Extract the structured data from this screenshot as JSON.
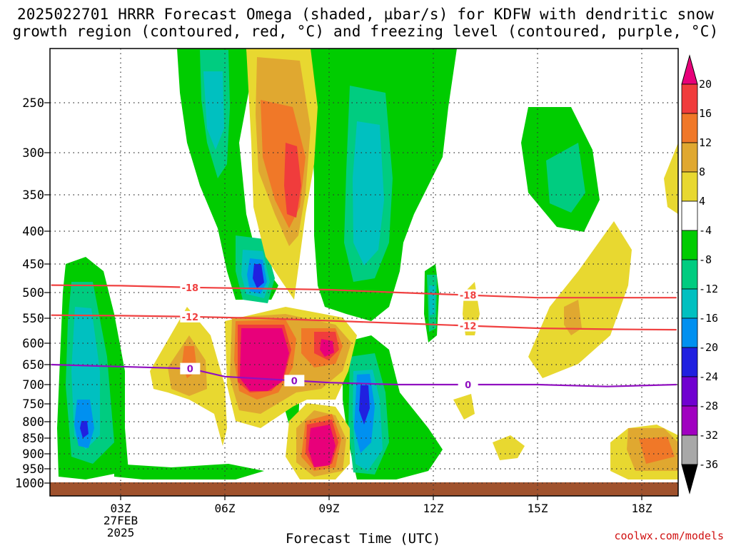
{
  "title_line1": "2025022701 HRRR Forecast Omega (shaded, µbar/s) for KDFW with dendritic snow",
  "title_line2": "growth region (contoured, red, °C) and freezing level (contoured, purple, °C)",
  "credit": "coolwx.com/models",
  "chart_data": {
    "type": "heatmap",
    "xlabel": "Forecast Time (UTC)",
    "x_ticks": [
      "03Z",
      "06Z",
      "09Z",
      "12Z",
      "15Z",
      "18Z"
    ],
    "x_date_label": [
      "27FEB",
      "2025"
    ],
    "y_ticks": [
      250,
      300,
      350,
      400,
      450,
      500,
      550,
      600,
      650,
      700,
      750,
      800,
      850,
      900,
      950,
      1000
    ],
    "y_axis": "pressure (hPa), decreasing upward",
    "grid": true,
    "colorbar": {
      "labels": [
        "20",
        "16",
        "12",
        "8",
        "4",
        "-4",
        "-8",
        "-12",
        "-16",
        "-20",
        "-24",
        "-28",
        "-32",
        "-36"
      ],
      "colors": [
        "#e8007a",
        "#f03c3c",
        "#f07828",
        "#e0a830",
        "#e8d830",
        "#ffffff",
        "#00cc00",
        "#00cc80",
        "#00c0c0",
        "#0090f0",
        "#2020e0",
        "#7000d0",
        "#a000c0",
        "#a8a8a8",
        "#000000"
      ]
    },
    "contours": [
      {
        "name": "dendritic growth -18°C",
        "label": "-18",
        "color": "#f04040",
        "points": [
          [
            1,
            487
          ],
          [
            3,
            488
          ],
          [
            5,
            491
          ],
          [
            7,
            493
          ],
          [
            9,
            495
          ],
          [
            11,
            500
          ],
          [
            13,
            505
          ],
          [
            15,
            510
          ],
          [
            17,
            510
          ],
          [
            19,
            510
          ]
        ]
      },
      {
        "name": "dendritic growth -12°C",
        "label": "-12",
        "color": "#f04040",
        "points": [
          [
            1,
            544
          ],
          [
            3,
            545
          ],
          [
            5,
            547
          ],
          [
            7,
            550
          ],
          [
            9,
            555
          ],
          [
            11,
            560
          ],
          [
            13,
            565
          ],
          [
            15,
            570
          ],
          [
            17,
            572
          ],
          [
            19,
            573
          ]
        ]
      },
      {
        "name": "freezing level 0°C",
        "label": "0",
        "color": "#9010c0",
        "points": [
          [
            1,
            650
          ],
          [
            3,
            655
          ],
          [
            5,
            660
          ],
          [
            6,
            680
          ],
          [
            8,
            690
          ],
          [
            9,
            695
          ],
          [
            11,
            700
          ],
          [
            13,
            700
          ],
          [
            15,
            700
          ],
          [
            17,
            705
          ],
          [
            19,
            700
          ]
        ]
      }
    ]
  }
}
